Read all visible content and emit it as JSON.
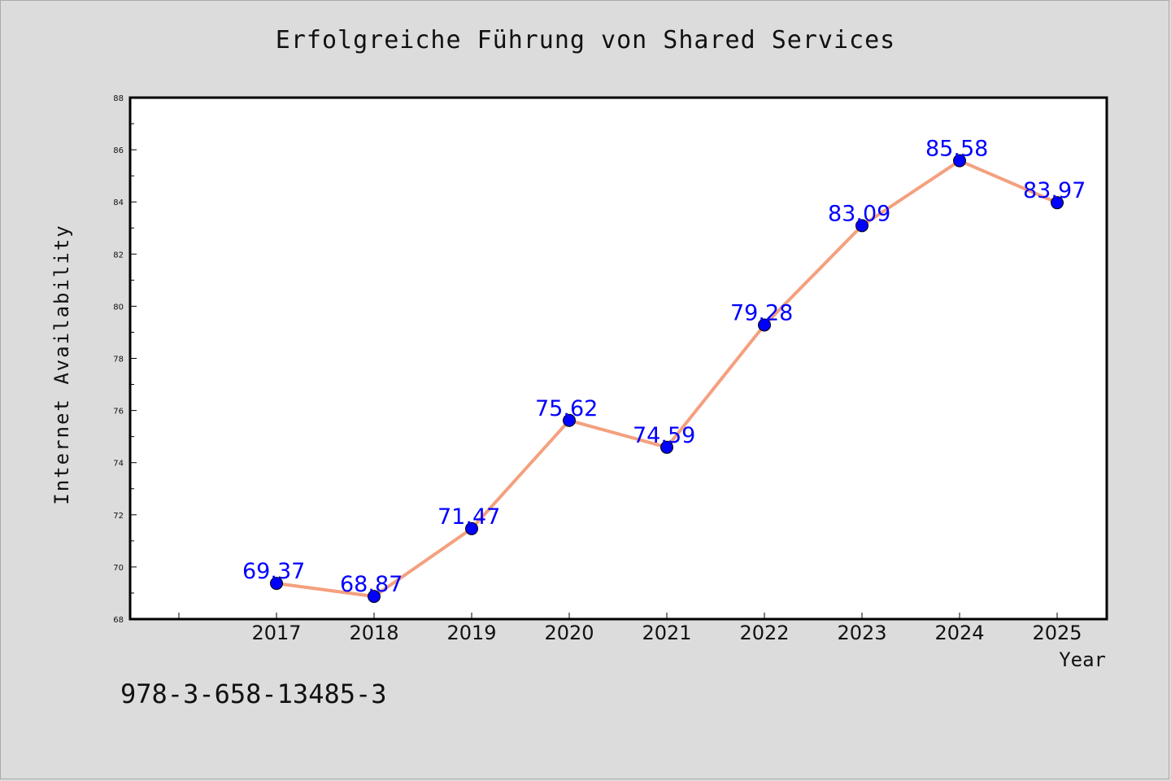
{
  "title": "Erfolgreiche Führung von Shared Services",
  "footer_text": "978-3-658-13485-3",
  "colors": {
    "line": "#f4a07e",
    "marker": "#0000ff",
    "label": "#0000ff",
    "plot_bg": "#ffffff",
    "page_bg": "#dcdcdc"
  },
  "chart_data": {
    "type": "line",
    "title": "Erfolgreiche Führung von Shared Services",
    "xlabel": "Year",
    "ylabel": "Internet Availability",
    "categories": [
      "2017",
      "2018",
      "2019",
      "2020",
      "2021",
      "2022",
      "2023",
      "2024",
      "2025"
    ],
    "series": [
      {
        "values": [
          69.37,
          68.87,
          71.47,
          75.62,
          74.59,
          79.28,
          83.09,
          85.58,
          83.97
        ],
        "labels": [
          "69.37",
          "68.87",
          "71.47",
          "75.62",
          "74.59",
          "79.28",
          "83.09",
          "85.58",
          "83.97"
        ]
      }
    ],
    "ylim": [
      68,
      88
    ],
    "yticks": [
      "68",
      "70",
      "72",
      "74",
      "76",
      "78",
      "80",
      "82",
      "84",
      "86",
      "88"
    ],
    "grid": false,
    "legend": "none"
  }
}
